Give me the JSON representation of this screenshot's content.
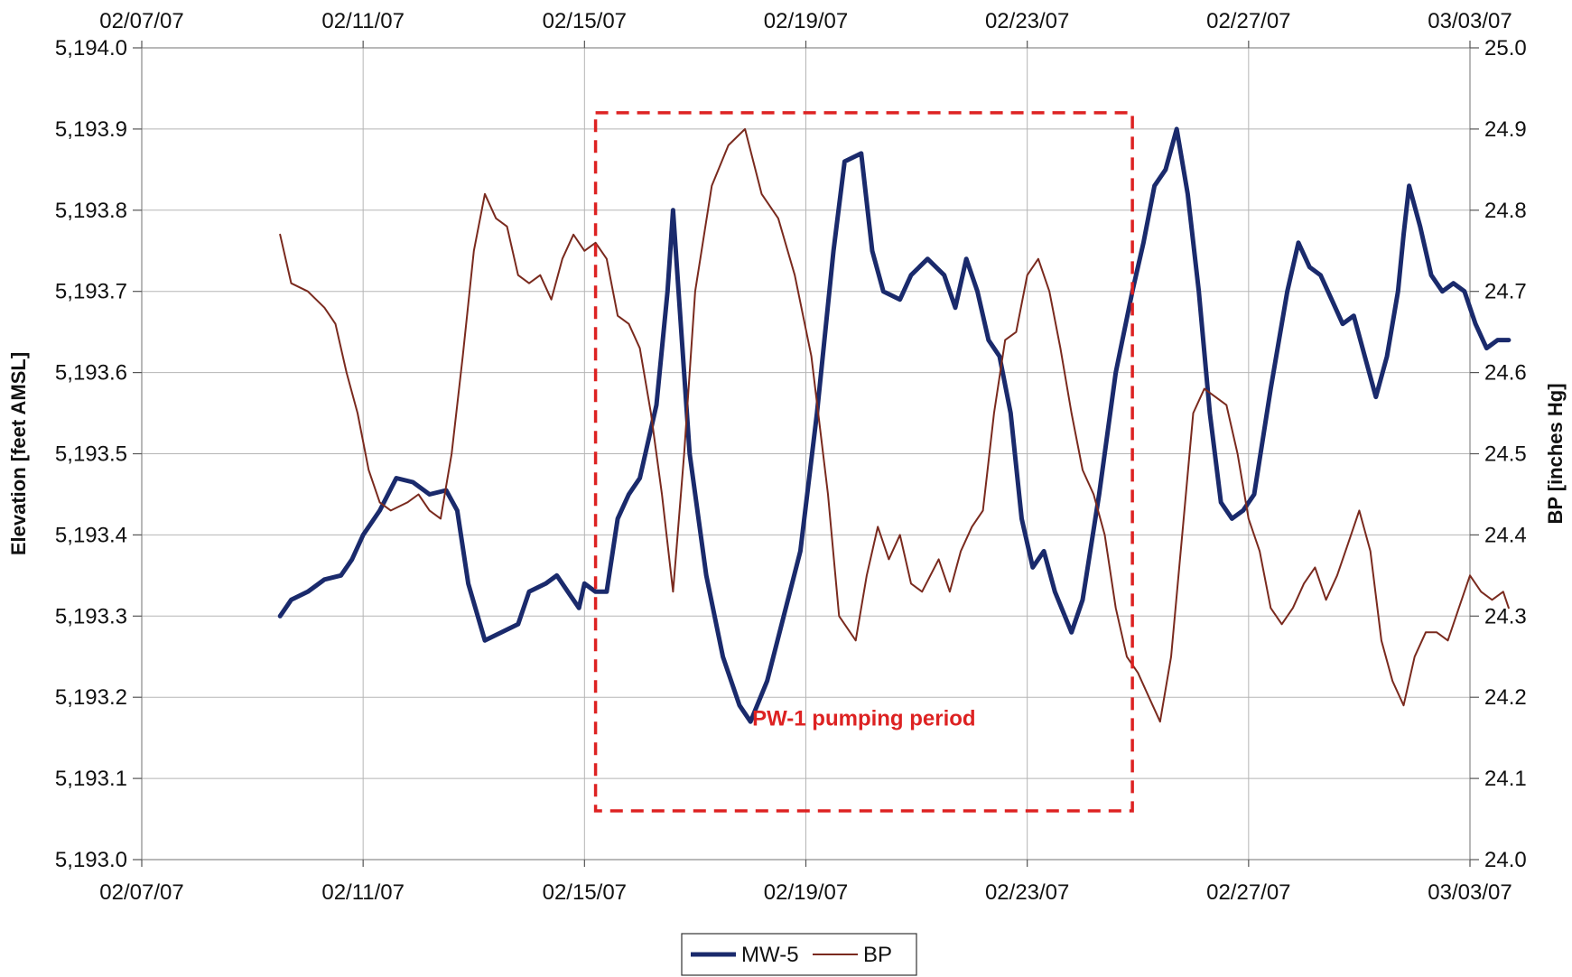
{
  "chart_data": {
    "type": "line",
    "title": "",
    "xlabel": "",
    "ylabel_left": "Elevation [feet AMSL]",
    "ylabel_right": "BP [inches Hg]",
    "x_ticks": [
      "02/07/07",
      "02/11/07",
      "02/15/07",
      "02/19/07",
      "02/23/07",
      "02/27/07",
      "03/03/07"
    ],
    "x_range_days": [
      0,
      24
    ],
    "x_start_date": "2007-02-07",
    "y_left": {
      "lim": [
        5193.0,
        5194.0
      ],
      "ticks": [
        "5,193.0",
        "5,193.1",
        "5,193.2",
        "5,193.3",
        "5,193.4",
        "5,193.5",
        "5,193.6",
        "5,193.7",
        "5,193.8",
        "5,193.9",
        "5,194.0"
      ]
    },
    "y_right": {
      "lim": [
        24.0,
        25.0
      ],
      "ticks": [
        "24.0",
        "24.1",
        "24.2",
        "24.3",
        "24.4",
        "24.5",
        "24.6",
        "24.7",
        "24.8",
        "24.9",
        "25.0"
      ]
    },
    "grid": true,
    "legend_position": "bottom",
    "series": [
      {
        "name": "MW-5",
        "axis": "left",
        "color": "#1a2a6c",
        "points": [
          [
            2.5,
            5193.3
          ],
          [
            2.7,
            5193.32
          ],
          [
            3.0,
            5193.33
          ],
          [
            3.3,
            5193.345
          ],
          [
            3.6,
            5193.35
          ],
          [
            3.8,
            5193.37
          ],
          [
            4.0,
            5193.4
          ],
          [
            4.3,
            5193.43
          ],
          [
            4.6,
            5193.47
          ],
          [
            4.9,
            5193.465
          ],
          [
            5.2,
            5193.45
          ],
          [
            5.5,
            5193.455
          ],
          [
            5.7,
            5193.43
          ],
          [
            5.9,
            5193.34
          ],
          [
            6.2,
            5193.27
          ],
          [
            6.5,
            5193.28
          ],
          [
            6.8,
            5193.29
          ],
          [
            7.0,
            5193.33
          ],
          [
            7.3,
            5193.34
          ],
          [
            7.5,
            5193.35
          ],
          [
            7.7,
            5193.33
          ],
          [
            7.9,
            5193.31
          ],
          [
            8.0,
            5193.34
          ],
          [
            8.2,
            5193.33
          ],
          [
            8.4,
            5193.33
          ],
          [
            8.6,
            5193.42
          ],
          [
            8.8,
            5193.45
          ],
          [
            9.0,
            5193.47
          ],
          [
            9.3,
            5193.56
          ],
          [
            9.5,
            5193.7
          ],
          [
            9.6,
            5193.8
          ],
          [
            9.7,
            5193.7
          ],
          [
            9.9,
            5193.5
          ],
          [
            10.2,
            5193.35
          ],
          [
            10.5,
            5193.25
          ],
          [
            10.8,
            5193.19
          ],
          [
            11.0,
            5193.17
          ],
          [
            11.3,
            5193.22
          ],
          [
            11.6,
            5193.3
          ],
          [
            11.9,
            5193.38
          ],
          [
            12.2,
            5193.55
          ],
          [
            12.5,
            5193.75
          ],
          [
            12.7,
            5193.86
          ],
          [
            13.0,
            5193.87
          ],
          [
            13.2,
            5193.75
          ],
          [
            13.4,
            5193.7
          ],
          [
            13.7,
            5193.69
          ],
          [
            13.9,
            5193.72
          ],
          [
            14.2,
            5193.74
          ],
          [
            14.5,
            5193.72
          ],
          [
            14.7,
            5193.68
          ],
          [
            14.9,
            5193.74
          ],
          [
            15.1,
            5193.7
          ],
          [
            15.3,
            5193.64
          ],
          [
            15.5,
            5193.62
          ],
          [
            15.7,
            5193.55
          ],
          [
            15.9,
            5193.42
          ],
          [
            16.1,
            5193.36
          ],
          [
            16.3,
            5193.38
          ],
          [
            16.5,
            5193.33
          ],
          [
            16.8,
            5193.28
          ],
          [
            17.0,
            5193.32
          ],
          [
            17.3,
            5193.45
          ],
          [
            17.6,
            5193.6
          ],
          [
            17.9,
            5193.7
          ],
          [
            18.1,
            5193.76
          ],
          [
            18.3,
            5193.83
          ],
          [
            18.5,
            5193.85
          ],
          [
            18.7,
            5193.9
          ],
          [
            18.9,
            5193.82
          ],
          [
            19.1,
            5193.7
          ],
          [
            19.3,
            5193.55
          ],
          [
            19.5,
            5193.44
          ],
          [
            19.7,
            5193.42
          ],
          [
            19.9,
            5193.43
          ],
          [
            20.1,
            5193.45
          ],
          [
            20.4,
            5193.58
          ],
          [
            20.7,
            5193.7
          ],
          [
            20.9,
            5193.76
          ],
          [
            21.1,
            5193.73
          ],
          [
            21.3,
            5193.72
          ],
          [
            21.5,
            5193.69
          ],
          [
            21.7,
            5193.66
          ],
          [
            21.9,
            5193.67
          ],
          [
            22.1,
            5193.62
          ],
          [
            22.3,
            5193.57
          ],
          [
            22.5,
            5193.62
          ],
          [
            22.7,
            5193.7
          ],
          [
            22.8,
            5193.77
          ],
          [
            22.9,
            5193.83
          ],
          [
            23.1,
            5193.78
          ],
          [
            23.3,
            5193.72
          ],
          [
            23.5,
            5193.7
          ],
          [
            23.7,
            5193.71
          ],
          [
            23.9,
            5193.7
          ],
          [
            24.1,
            5193.66
          ],
          [
            24.3,
            5193.63
          ],
          [
            24.5,
            5193.64
          ],
          [
            24.7,
            5193.64
          ]
        ]
      },
      {
        "name": "BP",
        "axis": "right",
        "color": "#7a2a1e",
        "points": [
          [
            2.5,
            24.77
          ],
          [
            2.7,
            24.71
          ],
          [
            3.0,
            24.7
          ],
          [
            3.3,
            24.68
          ],
          [
            3.5,
            24.66
          ],
          [
            3.7,
            24.6
          ],
          [
            3.9,
            24.55
          ],
          [
            4.1,
            24.48
          ],
          [
            4.3,
            24.44
          ],
          [
            4.5,
            24.43
          ],
          [
            4.8,
            24.44
          ],
          [
            5.0,
            24.45
          ],
          [
            5.2,
            24.43
          ],
          [
            5.4,
            24.42
          ],
          [
            5.6,
            24.5
          ],
          [
            5.8,
            24.62
          ],
          [
            6.0,
            24.75
          ],
          [
            6.2,
            24.82
          ],
          [
            6.4,
            24.79
          ],
          [
            6.6,
            24.78
          ],
          [
            6.8,
            24.72
          ],
          [
            7.0,
            24.71
          ],
          [
            7.2,
            24.72
          ],
          [
            7.4,
            24.69
          ],
          [
            7.6,
            24.74
          ],
          [
            7.8,
            24.77
          ],
          [
            8.0,
            24.75
          ],
          [
            8.2,
            24.76
          ],
          [
            8.4,
            24.74
          ],
          [
            8.6,
            24.67
          ],
          [
            8.8,
            24.66
          ],
          [
            9.0,
            24.63
          ],
          [
            9.2,
            24.55
          ],
          [
            9.4,
            24.45
          ],
          [
            9.6,
            24.33
          ],
          [
            9.8,
            24.5
          ],
          [
            10.0,
            24.7
          ],
          [
            10.3,
            24.83
          ],
          [
            10.6,
            24.88
          ],
          [
            10.9,
            24.9
          ],
          [
            11.2,
            24.82
          ],
          [
            11.5,
            24.79
          ],
          [
            11.8,
            24.72
          ],
          [
            12.1,
            24.62
          ],
          [
            12.4,
            24.45
          ],
          [
            12.6,
            24.3
          ],
          [
            12.9,
            24.27
          ],
          [
            13.1,
            24.35
          ],
          [
            13.3,
            24.41
          ],
          [
            13.5,
            24.37
          ],
          [
            13.7,
            24.4
          ],
          [
            13.9,
            24.34
          ],
          [
            14.1,
            24.33
          ],
          [
            14.4,
            24.37
          ],
          [
            14.6,
            24.33
          ],
          [
            14.8,
            24.38
          ],
          [
            15.0,
            24.41
          ],
          [
            15.2,
            24.43
          ],
          [
            15.4,
            24.55
          ],
          [
            15.6,
            24.64
          ],
          [
            15.8,
            24.65
          ],
          [
            16.0,
            24.72
          ],
          [
            16.2,
            24.74
          ],
          [
            16.4,
            24.7
          ],
          [
            16.6,
            24.63
          ],
          [
            16.8,
            24.55
          ],
          [
            17.0,
            24.48
          ],
          [
            17.2,
            24.45
          ],
          [
            17.4,
            24.4
          ],
          [
            17.6,
            24.31
          ],
          [
            17.8,
            24.25
          ],
          [
            18.0,
            24.23
          ],
          [
            18.2,
            24.2
          ],
          [
            18.4,
            24.17
          ],
          [
            18.6,
            24.25
          ],
          [
            18.8,
            24.4
          ],
          [
            19.0,
            24.55
          ],
          [
            19.2,
            24.58
          ],
          [
            19.4,
            24.57
          ],
          [
            19.6,
            24.56
          ],
          [
            19.8,
            24.5
          ],
          [
            20.0,
            24.42
          ],
          [
            20.2,
            24.38
          ],
          [
            20.4,
            24.31
          ],
          [
            20.6,
            24.29
          ],
          [
            20.8,
            24.31
          ],
          [
            21.0,
            24.34
          ],
          [
            21.2,
            24.36
          ],
          [
            21.4,
            24.32
          ],
          [
            21.6,
            24.35
          ],
          [
            21.8,
            24.39
          ],
          [
            22.0,
            24.43
          ],
          [
            22.2,
            24.38
          ],
          [
            22.4,
            24.27
          ],
          [
            22.6,
            24.22
          ],
          [
            22.8,
            24.19
          ],
          [
            23.0,
            24.25
          ],
          [
            23.2,
            24.28
          ],
          [
            23.4,
            24.28
          ],
          [
            23.6,
            24.27
          ],
          [
            23.8,
            24.31
          ],
          [
            24.0,
            24.35
          ],
          [
            24.2,
            24.33
          ],
          [
            24.4,
            24.32
          ],
          [
            24.6,
            24.33
          ],
          [
            24.7,
            24.31
          ]
        ]
      }
    ],
    "annotations": [
      {
        "type": "dashed-box",
        "label": "PW-1 pumping period",
        "color": "#dd2222",
        "x_range_days": [
          8.2,
          17.9
        ],
        "y_range_left": [
          5193.06,
          5193.92
        ]
      }
    ]
  }
}
